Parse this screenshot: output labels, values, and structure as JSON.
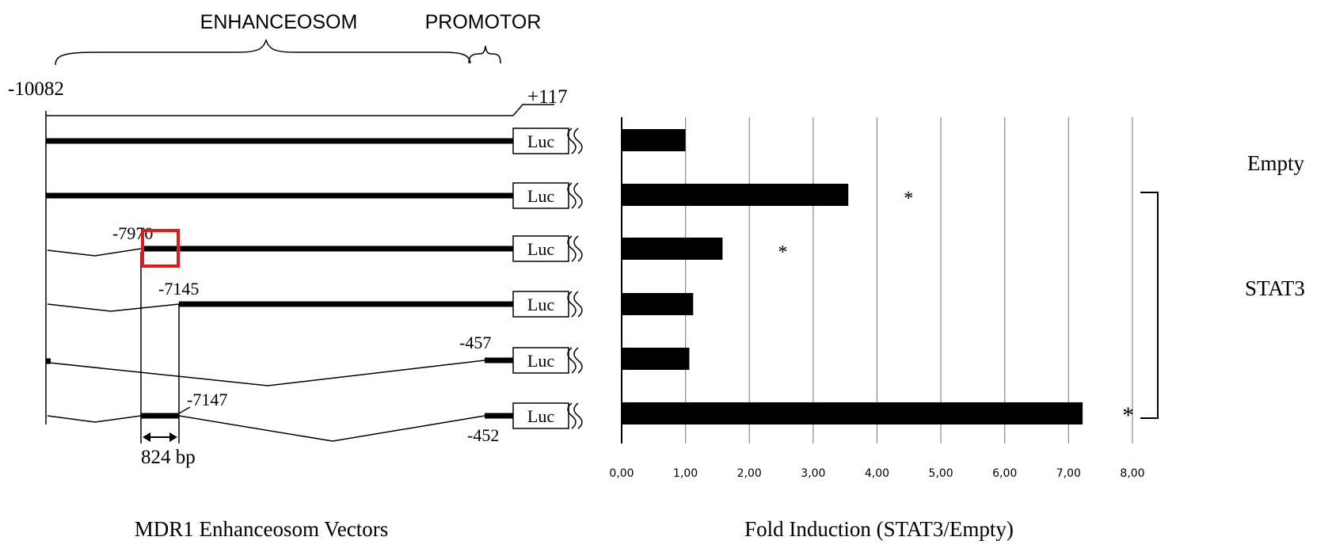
{
  "header": {
    "enhanceosom_label": "ENHANCEOSOM",
    "promotor_label": "PROMOTOR"
  },
  "vectors": {
    "caption": "MDR1 Enhanceosom Vectors",
    "start_coord": "-10082",
    "end_coord": "+117",
    "reporter_label": "Luc",
    "coords": {
      "c7970": "-7970",
      "c7145": "-7145",
      "c457": "-457",
      "c7147": "-7147",
      "c452": "-452"
    },
    "span_label": "824 bp",
    "highlight_color": "#e31a1c"
  },
  "chart_data": {
    "type": "bar",
    "orientation": "horizontal",
    "title": "",
    "xlabel": "Fold Induction (STAT3/Empty)",
    "ylabel": "",
    "xlim": [
      0,
      8
    ],
    "ticks": [
      "0,00",
      "1,00",
      "2,00",
      "3,00",
      "4,00",
      "5,00",
      "6,00",
      "7,00",
      "8,00"
    ],
    "grid": true,
    "values": [
      1.0,
      3.55,
      1.58,
      1.12,
      1.06,
      7.22
    ],
    "significance": [
      "",
      "*",
      "*",
      "",
      "",
      "*"
    ],
    "group_labels": {
      "empty": "Empty",
      "stat3": "STAT3"
    },
    "bar_color": "#000000"
  }
}
